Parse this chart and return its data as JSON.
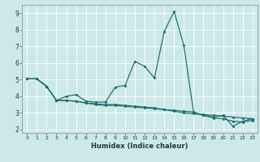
{
  "xlabel": "Humidex (Indice chaleur)",
  "xlim": [
    -0.5,
    23.5
  ],
  "ylim": [
    1.8,
    9.5
  ],
  "xticks": [
    0,
    1,
    2,
    3,
    4,
    5,
    6,
    7,
    8,
    9,
    10,
    11,
    12,
    13,
    14,
    15,
    16,
    17,
    18,
    19,
    20,
    21,
    22,
    23
  ],
  "yticks": [
    2,
    3,
    4,
    5,
    6,
    7,
    8,
    9
  ],
  "bg_color": "#cce8e8",
  "grid_color": "#ffffff",
  "line_color": "#1a6b6b",
  "series": [
    {
      "x": [
        0,
        1,
        2,
        3,
        4,
        5,
        6,
        7,
        8,
        9,
        10,
        11,
        12,
        13,
        14,
        15,
        16,
        17,
        18,
        19,
        20,
        21,
        22,
        23
      ],
      "y": [
        5.05,
        5.05,
        4.6,
        3.75,
        4.0,
        4.1,
        3.7,
        3.65,
        3.65,
        4.55,
        4.65,
        6.1,
        5.8,
        5.1,
        7.9,
        9.1,
        7.05,
        3.0,
        2.85,
        2.75,
        2.85,
        2.2,
        2.5,
        2.65
      ]
    },
    {
      "x": [
        0,
        1,
        2,
        3,
        4,
        5,
        6,
        7,
        8,
        9,
        10,
        11,
        12,
        13,
        14,
        15,
        16,
        17,
        18,
        19,
        20,
        21,
        22,
        23
      ],
      "y": [
        5.05,
        5.05,
        4.6,
        3.75,
        3.75,
        3.7,
        3.6,
        3.55,
        3.5,
        3.5,
        3.45,
        3.4,
        3.35,
        3.3,
        3.2,
        3.1,
        3.0,
        2.95,
        2.9,
        2.85,
        2.8,
        2.75,
        2.7,
        2.65
      ]
    },
    {
      "x": [
        0,
        1,
        2,
        3,
        4,
        5,
        6,
        7,
        8,
        9,
        10,
        11,
        12,
        13,
        14,
        15,
        16,
        17,
        18,
        19,
        20,
        21,
        22,
        23
      ],
      "y": [
        5.05,
        5.05,
        4.6,
        3.75,
        3.75,
        3.7,
        3.6,
        3.5,
        3.45,
        3.45,
        3.4,
        3.35,
        3.3,
        3.25,
        3.2,
        3.15,
        3.1,
        3.05,
        2.85,
        2.7,
        2.65,
        2.5,
        2.45,
        2.55
      ]
    }
  ]
}
